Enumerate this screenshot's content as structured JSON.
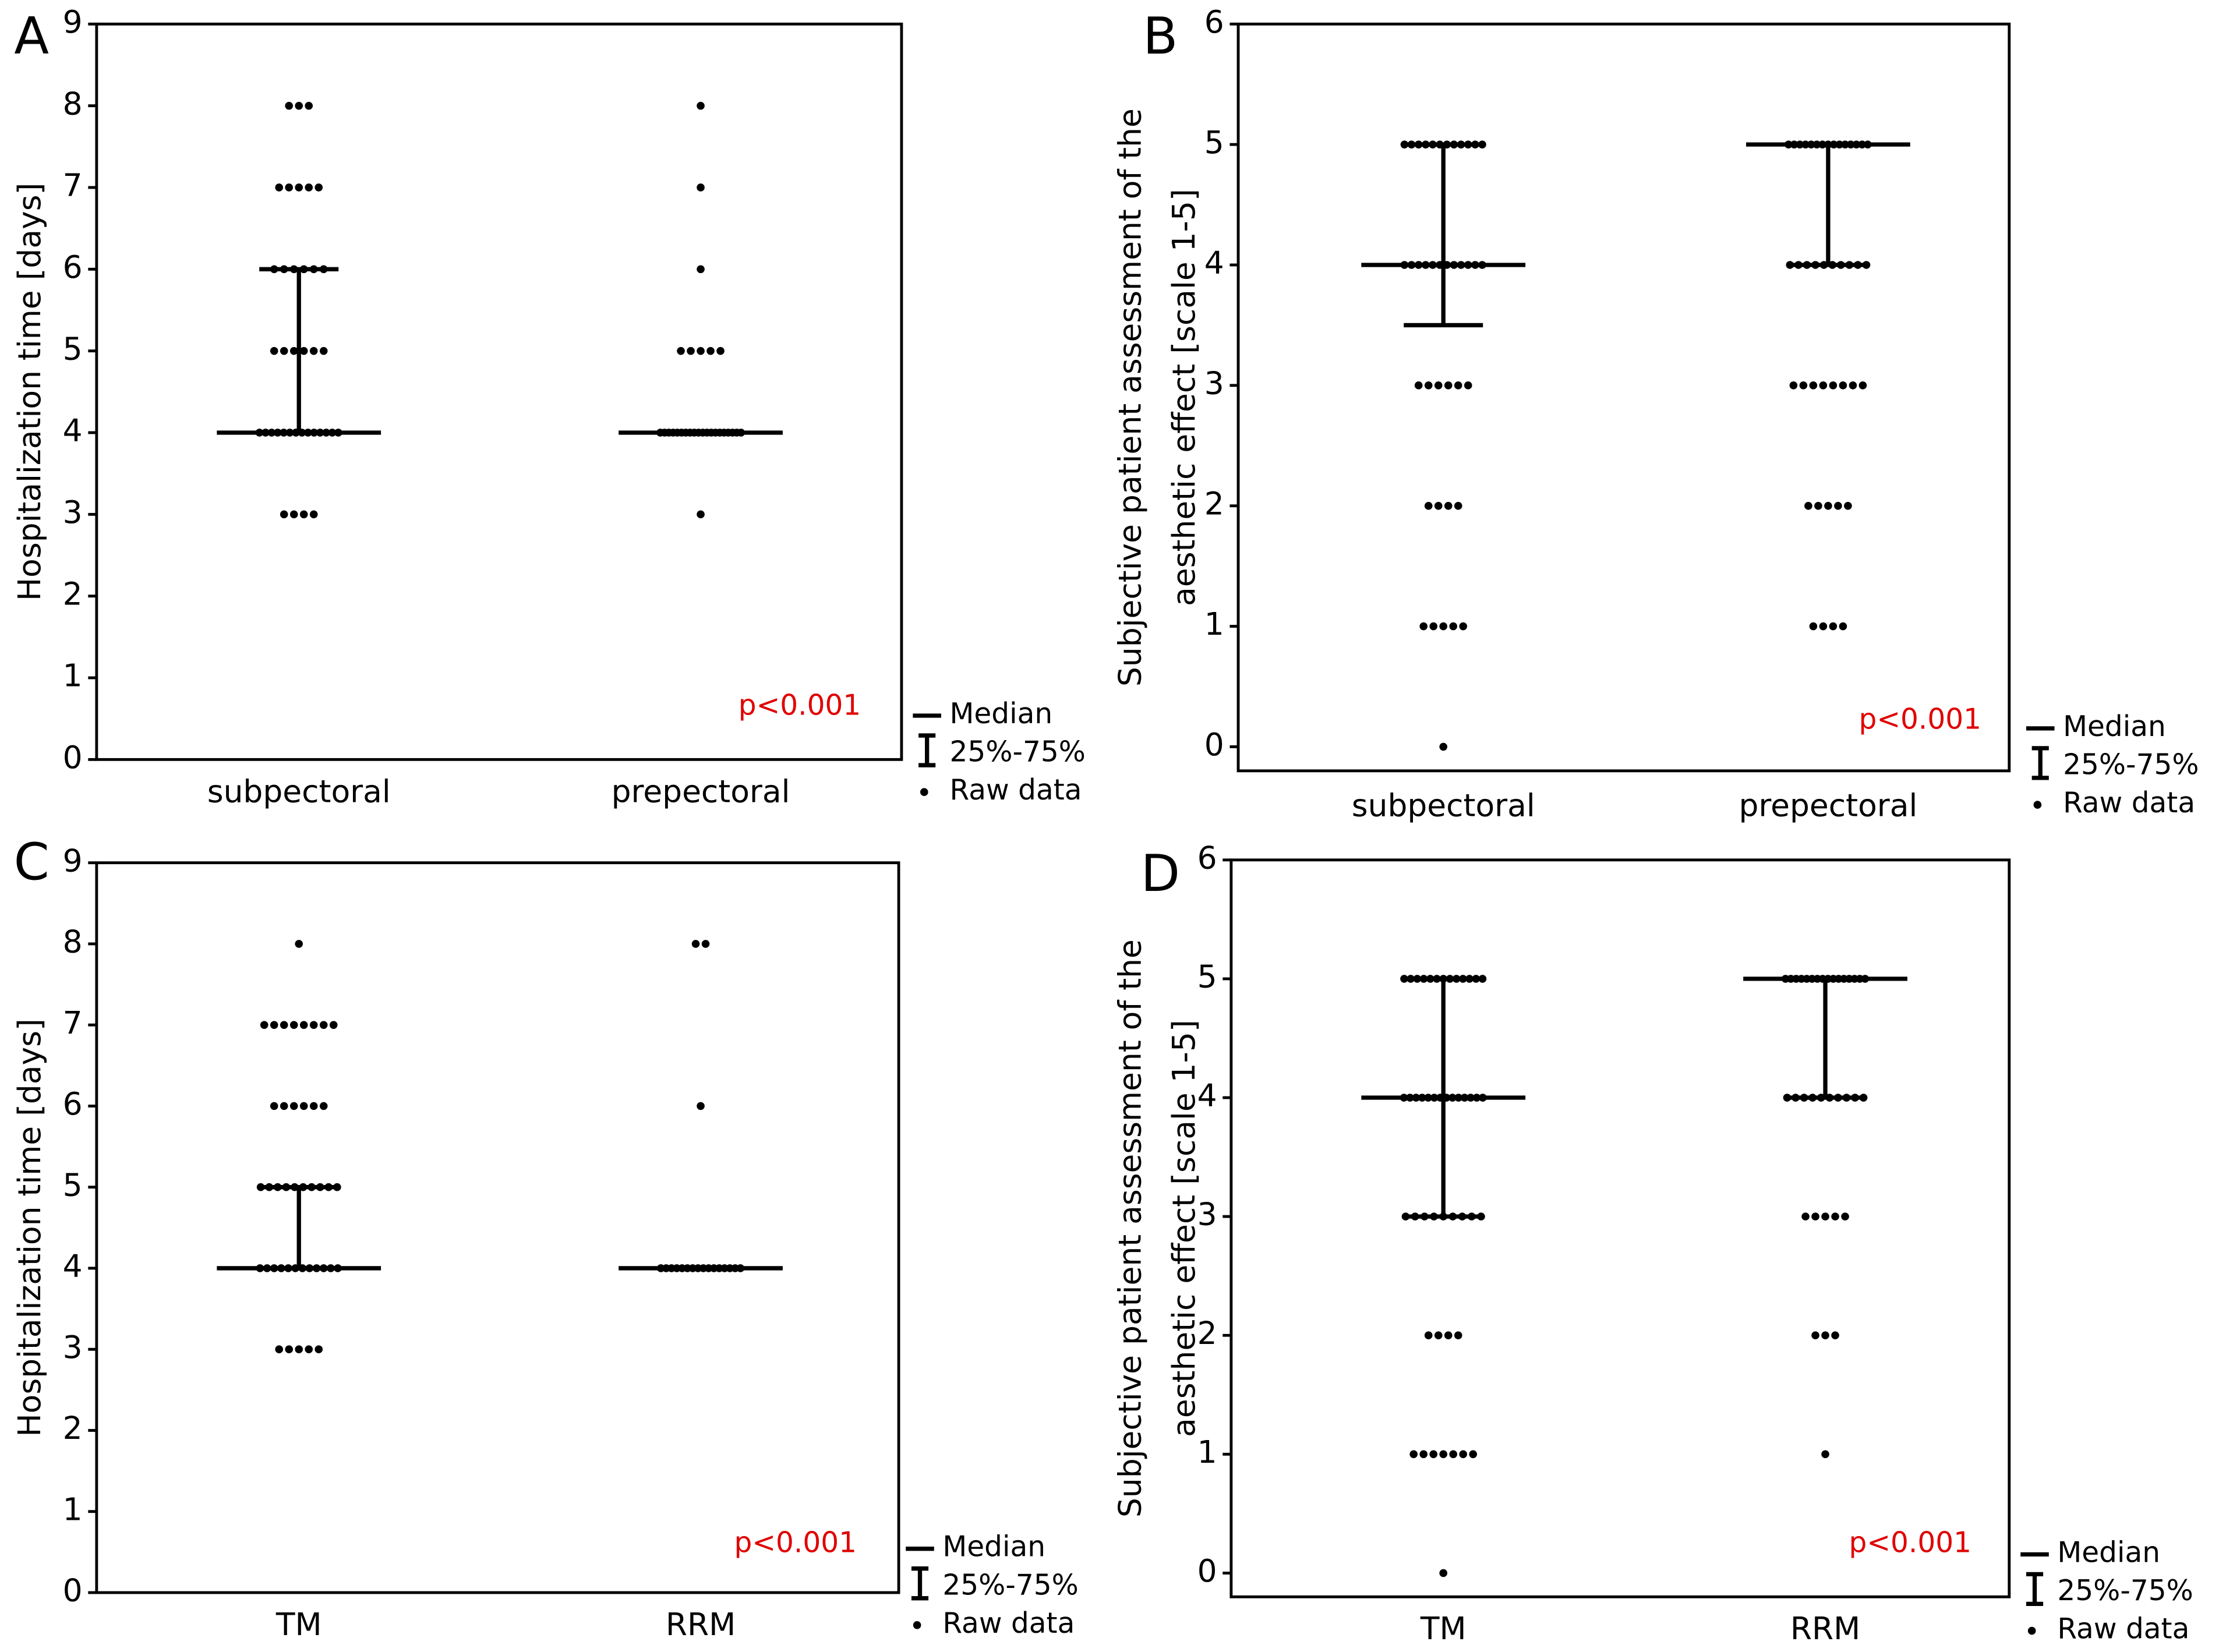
{
  "chart_data": [
    {
      "type": "dot",
      "panel": "A",
      "ylabel": [
        "Hospitalization time [days]"
      ],
      "categories": [
        "subpectoral",
        "prepectoral"
      ],
      "ylim": [
        0,
        9
      ],
      "yticks": [
        0,
        1,
        2,
        3,
        4,
        5,
        6,
        7,
        8,
        9
      ],
      "annotation": "p<0.001",
      "legend": [
        "Median",
        "25%-75%",
        "Raw data"
      ],
      "groups": [
        {
          "median": 4,
          "q1": 4,
          "q3": 6,
          "points": [
            8,
            8,
            8,
            7,
            7,
            7,
            7,
            7,
            6,
            6,
            6,
            6,
            6,
            6,
            5,
            5,
            5,
            5,
            5,
            5,
            4,
            4,
            4,
            4,
            4,
            4,
            4,
            4,
            4,
            4,
            4,
            4,
            4,
            4,
            3,
            3,
            3,
            3
          ]
        },
        {
          "median": 4,
          "q1": 4,
          "q3": 4,
          "points": [
            8,
            7,
            6,
            5,
            5,
            5,
            5,
            5,
            4,
            4,
            4,
            4,
            4,
            4,
            4,
            4,
            4,
            4,
            4,
            4,
            4,
            4,
            4,
            4,
            4,
            4,
            4,
            4,
            3
          ]
        }
      ]
    },
    {
      "type": "dot",
      "panel": "B",
      "ylabel": [
        "Subjective patient assessment of the",
        "aesthetic effect [scale 1-5]"
      ],
      "categories": [
        "subpectoral",
        "prepectoral"
      ],
      "ylim": [
        -0.2,
        6
      ],
      "yticks": [
        0,
        1,
        2,
        3,
        4,
        5,
        6
      ],
      "annotation": "p<0.001",
      "legend": [
        "Median",
        "25%-75%",
        "Raw data"
      ],
      "groups": [
        {
          "median": 4,
          "q1": 3.5,
          "q3": 5,
          "points": [
            5,
            5,
            5,
            5,
            5,
            5,
            5,
            5,
            5,
            5,
            5,
            5,
            4,
            4,
            4,
            4,
            4,
            4,
            4,
            4,
            4,
            4,
            4,
            4,
            3,
            3,
            3,
            3,
            3,
            3,
            2,
            2,
            2,
            2,
            1,
            1,
            1,
            1,
            1,
            0
          ]
        },
        {
          "median": 5,
          "q1": 4,
          "q3": 5,
          "points": [
            5,
            5,
            5,
            5,
            5,
            5,
            5,
            5,
            5,
            5,
            5,
            5,
            5,
            5,
            5,
            4,
            4,
            4,
            4,
            4,
            4,
            4,
            4,
            4,
            4,
            3,
            3,
            3,
            3,
            3,
            3,
            3,
            3,
            2,
            2,
            2,
            2,
            2,
            1,
            1,
            1,
            1
          ]
        }
      ]
    },
    {
      "type": "dot",
      "panel": "C",
      "ylabel": [
        "Hospitalization time [days]"
      ],
      "categories": [
        "TM",
        "RRM"
      ],
      "ylim": [
        0,
        9
      ],
      "yticks": [
        0,
        1,
        2,
        3,
        4,
        5,
        6,
        7,
        8,
        9
      ],
      "annotation": "p<0.001",
      "legend": [
        "Median",
        "25%-75%",
        "Raw data"
      ],
      "groups": [
        {
          "median": 4,
          "q1": 4,
          "q3": 5,
          "points": [
            8,
            7,
            7,
            7,
            7,
            7,
            7,
            7,
            7,
            6,
            6,
            6,
            6,
            6,
            6,
            5,
            5,
            5,
            5,
            5,
            5,
            5,
            5,
            5,
            5,
            4,
            4,
            4,
            4,
            4,
            4,
            4,
            4,
            4,
            4,
            4,
            4,
            3,
            3,
            3,
            3,
            3
          ]
        },
        {
          "median": 4,
          "q1": 4,
          "q3": 4,
          "points": [
            8,
            8,
            6,
            4,
            4,
            4,
            4,
            4,
            4,
            4,
            4,
            4,
            4,
            4,
            4,
            4,
            4,
            4,
            4
          ]
        }
      ]
    },
    {
      "type": "dot",
      "panel": "D",
      "ylabel": [
        "Subjective patient assessment of the",
        "aesthetic effect [scale 1-5]"
      ],
      "categories": [
        "TM",
        "RRM"
      ],
      "ylim": [
        -0.2,
        6
      ],
      "yticks": [
        0,
        1,
        2,
        3,
        4,
        5,
        6
      ],
      "annotation": "p<0.001",
      "legend": [
        "Median",
        "25%-75%",
        "Raw data"
      ],
      "groups": [
        {
          "median": 4,
          "q1": 3,
          "q3": 5,
          "points": [
            5,
            5,
            5,
            5,
            5,
            5,
            5,
            5,
            5,
            5,
            5,
            5,
            5,
            4,
            4,
            4,
            4,
            4,
            4,
            4,
            4,
            4,
            4,
            4,
            4,
            4,
            4,
            3,
            3,
            3,
            3,
            3,
            3,
            3,
            3,
            3,
            2,
            2,
            2,
            2,
            1,
            1,
            1,
            1,
            1,
            1,
            1,
            0
          ]
        },
        {
          "median": 5,
          "q1": 4,
          "q3": 5,
          "points": [
            5,
            5,
            5,
            5,
            5,
            5,
            5,
            5,
            5,
            5,
            5,
            5,
            5,
            5,
            5,
            5,
            4,
            4,
            4,
            4,
            4,
            4,
            4,
            4,
            4,
            4,
            3,
            3,
            3,
            3,
            3,
            2,
            2,
            2,
            1
          ]
        }
      ]
    }
  ]
}
